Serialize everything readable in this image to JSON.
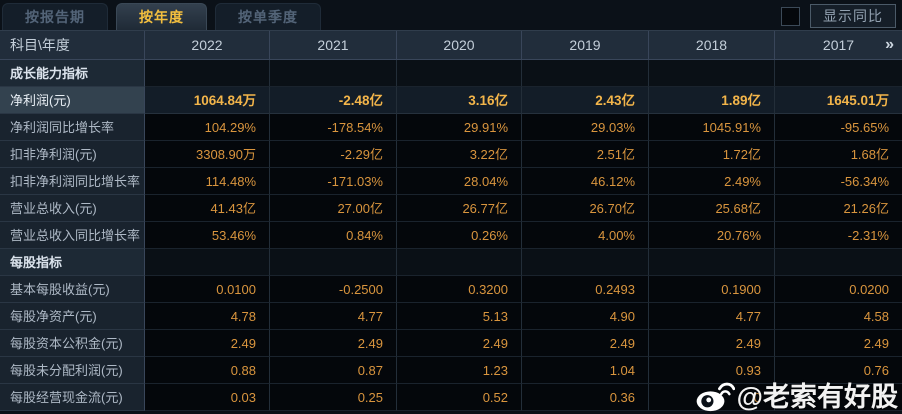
{
  "tabs": [
    {
      "label": "按报告期",
      "active": false
    },
    {
      "label": "按年度",
      "active": true
    },
    {
      "label": "按单季度",
      "active": false
    }
  ],
  "controls": {
    "show_yoy_label": "显示同比",
    "yoy_checkbox_checked": false
  },
  "table": {
    "corner_label": "科目\\年度",
    "years": [
      "2022",
      "2021",
      "2020",
      "2019",
      "2018",
      "2017"
    ],
    "more_label": "»",
    "rows": [
      {
        "type": "section",
        "label": "成长能力指标",
        "values": [
          "",
          "",
          "",
          "",
          "",
          ""
        ]
      },
      {
        "type": "highlight",
        "label": "净利润(元)",
        "values": [
          "1064.84万",
          "-2.48亿",
          "3.16亿",
          "2.43亿",
          "1.89亿",
          "1645.01万"
        ]
      },
      {
        "type": "data",
        "label": "净利润同比增长率",
        "values": [
          "104.29%",
          "-178.54%",
          "29.91%",
          "29.03%",
          "1045.91%",
          "-95.65%"
        ]
      },
      {
        "type": "data",
        "label": "扣非净利润(元)",
        "values": [
          "3308.90万",
          "-2.29亿",
          "3.22亿",
          "2.51亿",
          "1.72亿",
          "1.68亿"
        ]
      },
      {
        "type": "data",
        "label": "扣非净利润同比增长率",
        "values": [
          "114.48%",
          "-171.03%",
          "28.04%",
          "46.12%",
          "2.49%",
          "-56.34%"
        ]
      },
      {
        "type": "data",
        "label": "营业总收入(元)",
        "values": [
          "41.43亿",
          "27.00亿",
          "26.77亿",
          "26.70亿",
          "25.68亿",
          "21.26亿"
        ]
      },
      {
        "type": "data",
        "label": "营业总收入同比增长率",
        "values": [
          "53.46%",
          "0.84%",
          "0.26%",
          "4.00%",
          "20.76%",
          "-2.31%"
        ]
      },
      {
        "type": "section",
        "label": "每股指标",
        "values": [
          "",
          "",
          "",
          "",
          "",
          ""
        ]
      },
      {
        "type": "data",
        "label": "基本每股收益(元)",
        "values": [
          "0.0100",
          "-0.2500",
          "0.3200",
          "0.2493",
          "0.1900",
          "0.0200"
        ]
      },
      {
        "type": "data",
        "label": "每股净资产(元)",
        "values": [
          "4.78",
          "4.77",
          "5.13",
          "4.90",
          "4.77",
          "4.58"
        ]
      },
      {
        "type": "data",
        "label": "每股资本公积金(元)",
        "values": [
          "2.49",
          "2.49",
          "2.49",
          "2.49",
          "2.49",
          "2.49"
        ]
      },
      {
        "type": "data",
        "label": "每股未分配利润(元)",
        "values": [
          "0.88",
          "0.87",
          "1.23",
          "1.04",
          "0.93",
          "0.76"
        ]
      },
      {
        "type": "data",
        "label": "每股经营现金流(元)",
        "values": [
          "0.03",
          "0.25",
          "0.52",
          "0.36",
          "0",
          ""
        ]
      }
    ]
  },
  "watermark": {
    "icon": "weibo-icon",
    "text": "@老索有好股"
  },
  "colors": {
    "page_bg": "#0b1118",
    "active_tab_text": "#f3bf3f",
    "header_bg": "#212d3b",
    "label_cell_bg": "#19232e",
    "value_cell_bg": "#04070b",
    "value_text": "#d9953e",
    "highlight_value_text": "#f3b54a",
    "highlight_label_bg": "#33424f"
  }
}
